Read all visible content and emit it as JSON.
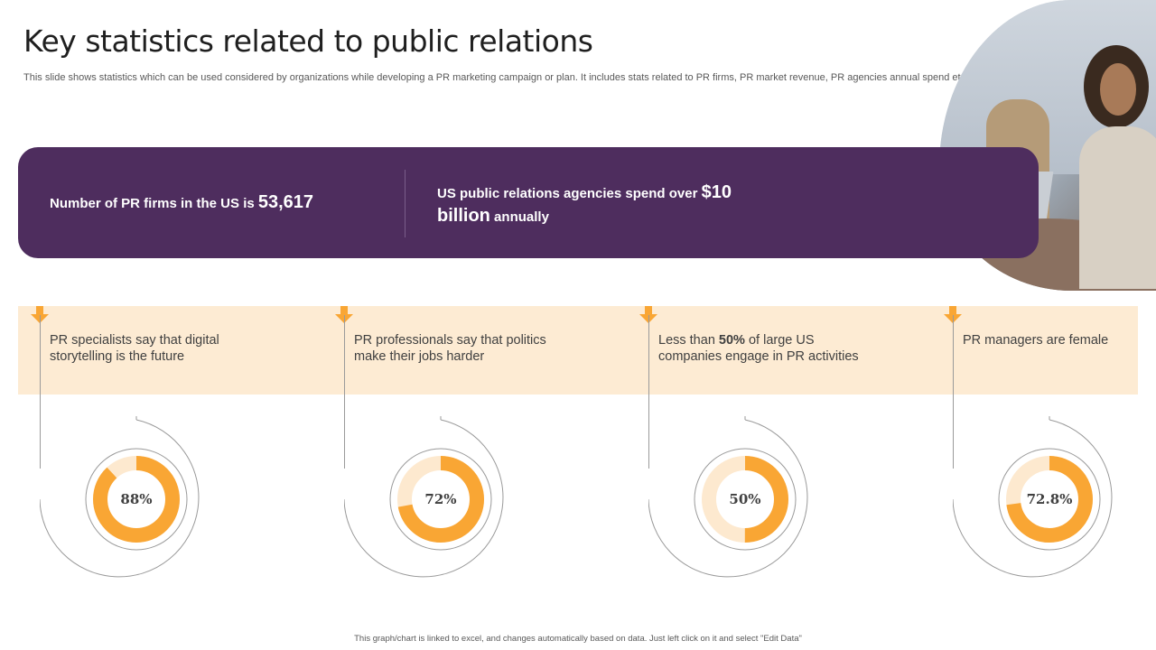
{
  "title": "Key statistics related to public relations",
  "subtitle": "This slide shows statistics which can be used considered by organizations while developing a PR marketing campaign or plan. It includes stats related to PR firms, PR market revenue, PR agencies annual spend etc.",
  "banner": {
    "stat1_text": "Number of PR firms in the US is ",
    "stat1_value": "53,617",
    "stat2_text": "US public relations agencies spend over ",
    "stat2_value": "$10",
    "stat2_value2": "billion",
    "stat2_suffix": " annually"
  },
  "stats": [
    {
      "text": "PR specialists say that digital storytelling is the future"
    },
    {
      "text": "PR professionals say that politics make their jobs harder"
    },
    {
      "text_pre": "Less than ",
      "text_bold": "50%",
      "text_post": " of large US companies engage in PR activities"
    },
    {
      "text": "PR managers are female"
    }
  ],
  "chart_data": {
    "type": "pie",
    "variant": "donut",
    "categories": [
      "PR specialists: digital storytelling",
      "PR professionals: politics harder",
      "Large US companies engaging in PR",
      "PR managers female"
    ],
    "values": [
      88,
      72,
      50,
      72.8
    ],
    "labels": [
      "88%",
      "72%",
      "50%",
      "72.8%"
    ],
    "unit": "%"
  },
  "colors": {
    "purple": "#4e2d5e",
    "orange": "#f9a634",
    "light_orange": "#fdebd3",
    "track": "#fde9cf"
  },
  "footer": "This graph/chart is linked to excel, and changes automatically based on data. Just left click on it and select \"Edit Data\""
}
